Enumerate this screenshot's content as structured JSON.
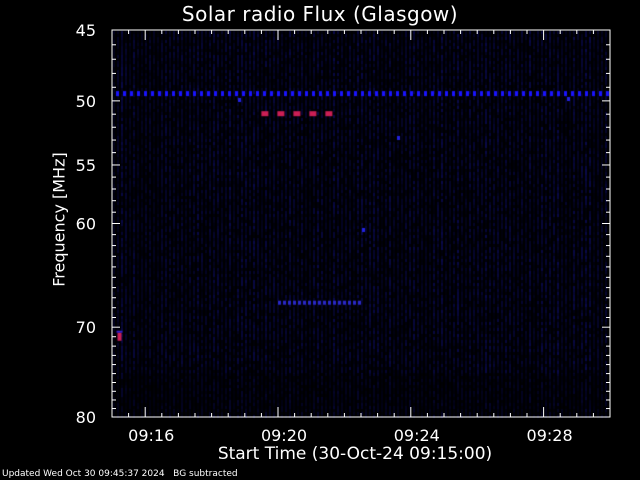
{
  "chart_data": {
    "type": "heatmap",
    "title": "Solar radio Flux (Glasgow)",
    "xlabel": "Start Time (30-Oct-24 09:15:00)",
    "ylabel": "Frequency [MHz]",
    "x_ticks": [
      "09:16",
      "09:20",
      "09:24",
      "09:28"
    ],
    "y_ticks": [
      45,
      50,
      55,
      60,
      70,
      80
    ],
    "y_axis_scale": "log",
    "ylim_mhz": [
      80,
      45
    ],
    "xlim_minutes_after_start": [
      0,
      15
    ],
    "colors": {
      "background": "#000000",
      "grid": "#0d0d55",
      "band": "#1a14ff",
      "burst": "#cc1f55"
    },
    "features": [
      {
        "name": "continuous band",
        "frequency_mhz": 49.5,
        "time_range": [
          "09:15",
          "09:30"
        ]
      },
      {
        "name": "burst",
        "frequency_mhz": 51.0,
        "time_range": [
          "09:19:30",
          "09:21:30"
        ]
      },
      {
        "name": "faint band",
        "frequency_mhz": 67.5,
        "time_range": [
          "09:20:00",
          "09:22:30"
        ]
      },
      {
        "name": "spot",
        "frequency_mhz": 71.0,
        "time": "09:15:10"
      }
    ]
  },
  "footer": {
    "updated": "Updated Wed Oct 30 09:45:37 2024",
    "note": "BG subtracted"
  }
}
